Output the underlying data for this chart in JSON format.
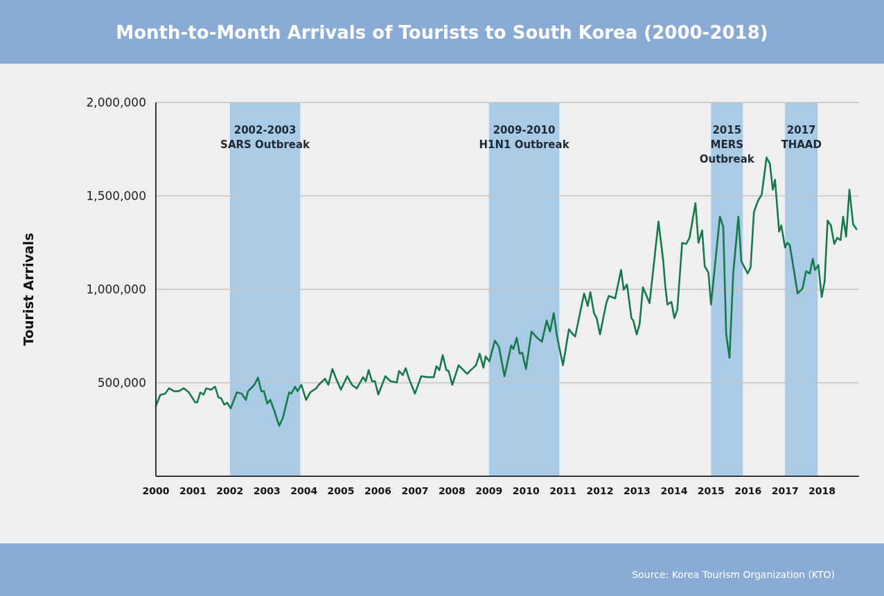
{
  "chart_data": {
    "type": "line",
    "title": "Month-to-Month Arrivals of Tourists to South Korea (2000-2018)",
    "ylabel": "Tourist Arrivals",
    "annotations": [
      "Source: Korea Tourism Organization (KTO)"
    ],
    "xlim": [
      2000,
      2019
    ],
    "xticks": [
      2000,
      2001,
      2002,
      2003,
      2004,
      2005,
      2006,
      2007,
      2008,
      2009,
      2010,
      2011,
      2012,
      2013,
      2014,
      2015,
      2016,
      2017,
      2018
    ],
    "ylim": [
      0,
      2000000
    ],
    "yticks": [
      {
        "value": 500000,
        "label": "500,000"
      },
      {
        "value": 1000000,
        "label": "1,000,000"
      },
      {
        "value": 1500000,
        "label": "1,500,000"
      },
      {
        "value": 2000000,
        "label": "2,000,000"
      }
    ],
    "grid": "y",
    "marker": "none",
    "line_style": "solid",
    "bands": [
      {
        "axis": "x",
        "from": 2002,
        "to": 2003.9,
        "label": "2002-2003\nSARS Outbreak",
        "color": "#a9cbe5"
      },
      {
        "axis": "x",
        "from": 2009,
        "to": 2010.9,
        "label": "2009-2010\nH1N1 Outbreak",
        "color": "#a9cbe5"
      },
      {
        "axis": "x",
        "from": 2015,
        "to": 2015.86,
        "label": "2015\nMERS\nOutbreak",
        "color": "#a9cbe5"
      },
      {
        "axis": "x",
        "from": 2017,
        "to": 2017.88,
        "label": "2017\nTHAAD",
        "color": "#a9cbe5"
      }
    ],
    "series": [
      {
        "color": "#16784c",
        "x": [
          2000.0,
          2000.12,
          2000.25,
          2000.36,
          2000.49,
          2000.62,
          2000.75,
          2000.89,
          2001.06,
          2001.12,
          2001.2,
          2001.29,
          2001.36,
          2001.49,
          2001.6,
          2001.69,
          2001.76,
          2001.85,
          2001.93,
          2002.02,
          2002.19,
          2002.32,
          2002.43,
          2002.49,
          2002.66,
          2002.76,
          2002.85,
          2002.92,
          2003.01,
          2003.09,
          2003.2,
          2003.33,
          2003.43,
          2003.6,
          2003.66,
          2003.76,
          2003.83,
          2003.93,
          2004.06,
          2004.17,
          2004.33,
          2004.4,
          2004.57,
          2004.66,
          2004.77,
          2004.87,
          2005.0,
          2005.17,
          2005.3,
          2005.43,
          2005.6,
          2005.67,
          2005.75,
          2005.84,
          2005.92,
          2006.01,
          2006.2,
          2006.34,
          2006.51,
          2006.57,
          2006.67,
          2006.75,
          2006.84,
          2007.0,
          2007.17,
          2007.34,
          2007.51,
          2007.58,
          2007.66,
          2007.75,
          2007.85,
          2007.91,
          2008.01,
          2008.18,
          2008.28,
          2008.41,
          2008.51,
          2008.65,
          2008.75,
          2008.85,
          2008.91,
          2009.01,
          2009.16,
          2009.27,
          2009.42,
          2009.6,
          2009.66,
          2009.75,
          2009.83,
          2009.9,
          2010.0,
          2010.15,
          2010.3,
          2010.43,
          2010.56,
          2010.65,
          2010.75,
          2010.84,
          2011.0,
          2011.16,
          2011.27,
          2011.33,
          2011.57,
          2011.67,
          2011.74,
          2011.84,
          2011.91,
          2012.0,
          2012.17,
          2012.24,
          2012.41,
          2012.57,
          2012.64,
          2012.73,
          2012.85,
          2012.9,
          2012.99,
          2013.07,
          2013.16,
          2013.34,
          2013.58,
          2013.71,
          2013.76,
          2013.82,
          2013.93,
          2014.01,
          2014.09,
          2014.22,
          2014.33,
          2014.42,
          2014.58,
          2014.66,
          2014.76,
          2014.83,
          2014.93,
          2015.0,
          2015.24,
          2015.33,
          2015.41,
          2015.5,
          2015.6,
          2015.74,
          2015.82,
          2015.99,
          2016.07,
          2016.16,
          2016.27,
          2016.37,
          2016.5,
          2016.59,
          2016.67,
          2016.73,
          2016.84,
          2016.9,
          2017.0,
          2017.06,
          2017.13,
          2017.34,
          2017.47,
          2017.57,
          2017.67,
          2017.75,
          2017.81,
          2017.9,
          2017.99,
          2018.07,
          2018.15,
          2018.24,
          2018.33,
          2018.41,
          2018.5,
          2018.57,
          2018.65,
          2018.74,
          2018.84,
          2018.93
        ],
        "values": [
          376000,
          435000,
          442000,
          471000,
          455000,
          455000,
          471000,
          449000,
          396000,
          396000,
          448000,
          437000,
          470000,
          463000,
          479000,
          422000,
          418000,
          383000,
          393000,
          363000,
          449000,
          442000,
          409000,
          455000,
          489000,
          528000,
          455000,
          455000,
          389000,
          409000,
          350000,
          270000,
          311000,
          449000,
          442000,
          479000,
          455000,
          489000,
          409000,
          449000,
          470000,
          489000,
          522000,
          489000,
          574000,
          522000,
          463000,
          535000,
          489000,
          470000,
          530000,
          508000,
          568000,
          508000,
          508000,
          437000,
          535000,
          508000,
          502000,
          563000,
          541000,
          578000,
          522000,
          442000,
          535000,
          530000,
          530000,
          589000,
          568000,
          648000,
          568000,
          563000,
          489000,
          594000,
          574000,
          548000,
          568000,
          594000,
          656000,
          581000,
          641000,
          615000,
          726000,
          693000,
          535000,
          700000,
          681000,
          741000,
          656000,
          661000,
          574000,
          774000,
          741000,
          720000,
          833000,
          774000,
          872000,
          748000,
          594000,
          786000,
          759000,
          748000,
          978000,
          911000,
          985000,
          872000,
          846000,
          759000,
          926000,
          965000,
          952000,
          1104000,
          998000,
          1026000,
          846000,
          833000,
          759000,
          813000,
          1011000,
          926000,
          1363000,
          1150000,
          1026000,
          919000,
          933000,
          846000,
          892000,
          1249000,
          1243000,
          1276000,
          1461000,
          1249000,
          1315000,
          1124000,
          1090000,
          919000,
          1389000,
          1335000,
          760000,
          634000,
          1085000,
          1389000,
          1150000,
          1085000,
          1118000,
          1415000,
          1474000,
          1507000,
          1705000,
          1673000,
          1533000,
          1587000,
          1309000,
          1342000,
          1223000,
          1249000,
          1236000,
          978000,
          1004000,
          1097000,
          1085000,
          1163000,
          1104000,
          1130000,
          959000,
          1044000,
          1368000,
          1342000,
          1243000,
          1276000,
          1263000,
          1389000,
          1282000,
          1533000,
          1348000,
          1322000
        ]
      }
    ]
  }
}
